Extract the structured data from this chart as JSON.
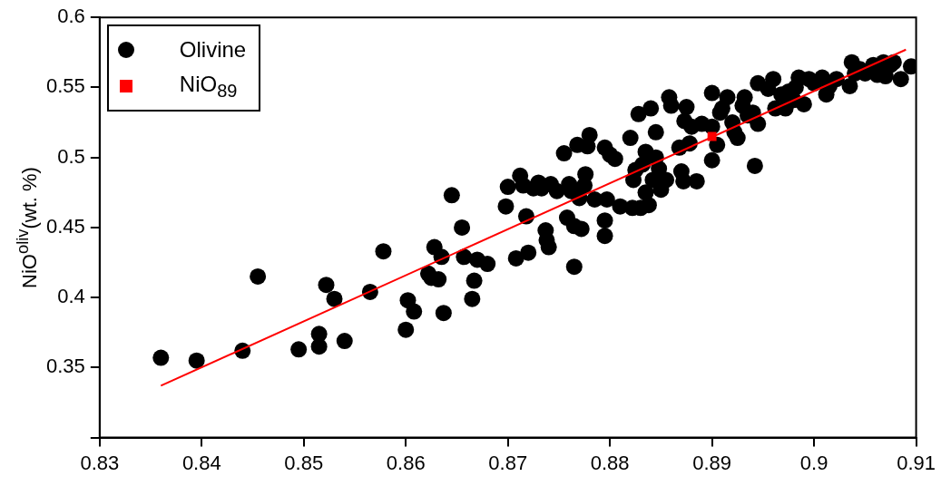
{
  "chart_data": {
    "type": "scatter",
    "ylabel": "NiO$^{oliv}$(wt. %)",
    "xlim": [
      0.83,
      0.91
    ],
    "xticks": [
      0.83,
      0.84,
      0.85,
      0.86,
      0.87,
      0.88,
      0.89,
      0.9,
      0.91
    ],
    "ylim": [
      0.3,
      0.6
    ],
    "yticks": [
      {
        "value": 0.3,
        "label": null
      },
      0.35,
      0.4,
      0.45,
      0.5,
      0.55,
      0.6
    ],
    "grid": false,
    "legend": "top left",
    "series": [
      {
        "name": "Olivine",
        "marker": "circle",
        "color": "#000000",
        "x": [
          0.836,
          0.8395,
          0.844,
          0.8455,
          0.8495,
          0.8515,
          0.8515,
          0.8522,
          0.853,
          0.854,
          0.8565,
          0.8578,
          0.86,
          0.8602,
          0.8608,
          0.8622,
          0.8625,
          0.8628,
          0.8632,
          0.8635,
          0.8637,
          0.8645,
          0.8655,
          0.8657,
          0.8665,
          0.8667,
          0.867,
          0.868,
          0.8698,
          0.87,
          0.8708,
          0.8712,
          0.8715,
          0.8718,
          0.872,
          0.8725,
          0.873,
          0.8733,
          0.8737,
          0.8738,
          0.874,
          0.8742,
          0.8748,
          0.8755,
          0.8758,
          0.876,
          0.8762,
          0.8765,
          0.8765,
          0.8768,
          0.877,
          0.8772,
          0.8775,
          0.8778,
          0.8776,
          0.878,
          0.8785,
          0.8795,
          0.8795,
          0.8795,
          0.8797,
          0.88,
          0.8805,
          0.881,
          0.882,
          0.8822,
          0.8823,
          0.8825,
          0.8828,
          0.883,
          0.8832,
          0.8835,
          0.8835,
          0.8838,
          0.884,
          0.8842,
          0.8845,
          0.8845,
          0.8848,
          0.885,
          0.8855,
          0.8858,
          0.886,
          0.8868,
          0.887,
          0.8872,
          0.8873,
          0.8875,
          0.8878,
          0.888,
          0.8885,
          0.889,
          0.89,
          0.89,
          0.89,
          0.8905,
          0.8908,
          0.891,
          0.8915,
          0.892,
          0.8922,
          0.8925,
          0.893,
          0.8932,
          0.8935,
          0.894,
          0.8942,
          0.8945,
          0.8945,
          0.8955,
          0.896,
          0.8962,
          0.8968,
          0.8972,
          0.8975,
          0.898,
          0.8982,
          0.8985,
          0.899,
          0.8995,
          0.9,
          0.9008,
          0.9012,
          0.9015,
          0.9022,
          0.9035,
          0.9037,
          0.904,
          0.9045,
          0.905,
          0.9058,
          0.9062,
          0.9068,
          0.907,
          0.9075,
          0.9078,
          0.9085,
          0.9095
        ],
        "values": [
          0.357,
          0.355,
          0.362,
          0.415,
          0.363,
          0.374,
          0.365,
          0.409,
          0.399,
          0.369,
          0.404,
          0.433,
          0.377,
          0.398,
          0.39,
          0.417,
          0.414,
          0.436,
          0.413,
          0.429,
          0.389,
          0.473,
          0.45,
          0.429,
          0.399,
          0.412,
          0.427,
          0.424,
          0.465,
          0.479,
          0.428,
          0.487,
          0.48,
          0.458,
          0.432,
          0.478,
          0.482,
          0.478,
          0.448,
          0.441,
          0.436,
          0.481,
          0.476,
          0.503,
          0.457,
          0.481,
          0.476,
          0.422,
          0.451,
          0.509,
          0.471,
          0.449,
          0.48,
          0.508,
          0.488,
          0.516,
          0.47,
          0.507,
          0.455,
          0.444,
          0.47,
          0.502,
          0.499,
          0.465,
          0.514,
          0.464,
          0.484,
          0.491,
          0.531,
          0.464,
          0.495,
          0.475,
          0.504,
          0.466,
          0.535,
          0.484,
          0.5,
          0.518,
          0.492,
          0.477,
          0.484,
          0.543,
          0.537,
          0.507,
          0.49,
          0.483,
          0.526,
          0.536,
          0.51,
          0.522,
          0.483,
          0.524,
          0.546,
          0.498,
          0.522,
          0.509,
          0.532,
          0.535,
          0.543,
          0.525,
          0.518,
          0.514,
          0.537,
          0.543,
          0.53,
          0.532,
          0.494,
          0.524,
          0.553,
          0.549,
          0.556,
          0.535,
          0.545,
          0.535,
          0.547,
          0.541,
          0.55,
          0.557,
          0.538,
          0.556,
          0.553,
          0.557,
          0.545,
          0.551,
          0.556,
          0.551,
          0.568,
          0.56,
          0.563,
          0.56,
          0.566,
          0.559,
          0.568,
          0.558,
          0.566,
          0.568,
          0.556,
          0.565
        ]
      },
      {
        "name": "NiO$_{89}$",
        "marker": "square",
        "color": "#ff0000",
        "x": [
          0.89
        ],
        "values": [
          0.515
        ]
      },
      {
        "type": "line",
        "marker": "none",
        "line_style": "solid",
        "color": "#ff0000",
        "x": [
          0.836,
          0.909
        ],
        "values": [
          0.337,
          0.577
        ]
      }
    ]
  }
}
